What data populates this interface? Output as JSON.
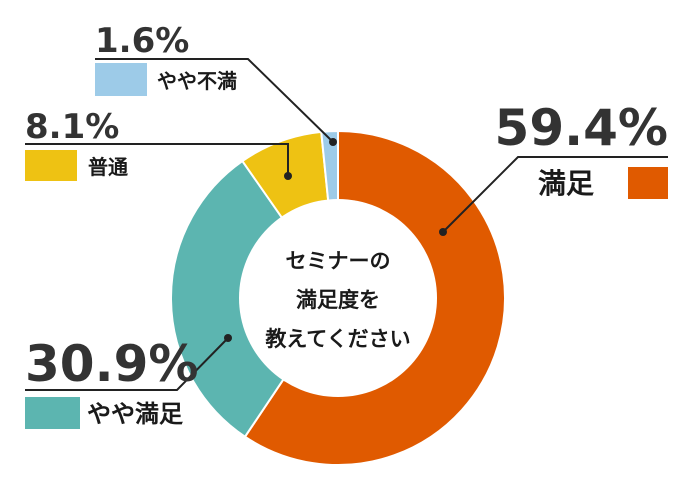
{
  "chart_data": {
    "type": "pie",
    "donut": true,
    "center_text": [
      "セミナーの",
      "満足度を",
      "教えてください"
    ],
    "slices": [
      {
        "label": "満足",
        "value": 59.4,
        "value_label": "59.4%",
        "color": "#e05a00"
      },
      {
        "label": "やや満足",
        "value": 30.9,
        "value_label": "30.9%",
        "color": "#5cb5b0"
      },
      {
        "label": "普通",
        "value": 8.1,
        "value_label": "8.1%",
        "color": "#eec213"
      },
      {
        "label": "やや不満",
        "value": 1.6,
        "value_label": "1.6%",
        "color": "#9dcbe8"
      }
    ],
    "legend": "callouts"
  }
}
